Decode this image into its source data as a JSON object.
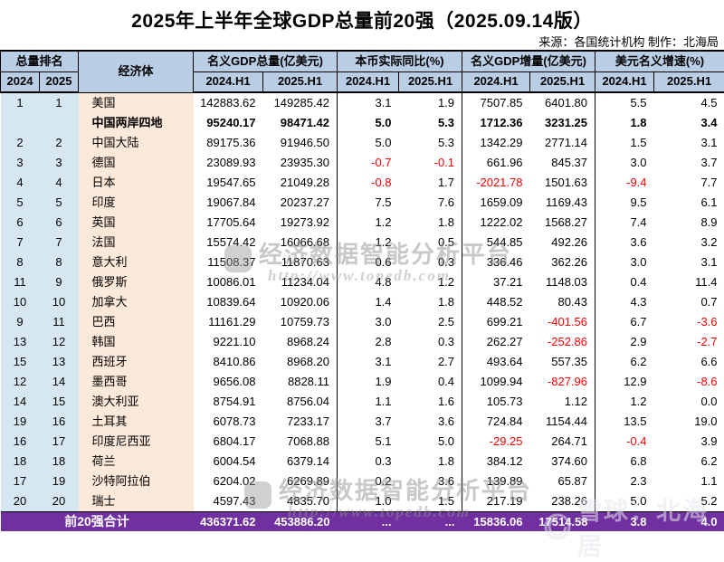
{
  "title": "2025年上半年全球GDP总量前20强（2025.09.14版）",
  "source_line": "来源：各国统计机构 制作：北海局",
  "colors": {
    "header_bg": "#B9CDE4",
    "rank_bg": "#D7E7F2",
    "economy_bg": "#FDE9D9",
    "total_bg": "#7030A0",
    "negative": "#FF0000"
  },
  "chart_data": {
    "type": "table",
    "group_headers": [
      "总量排名",
      "经济体",
      "名义GDP总量(亿美元)",
      "本币实际同比(%)",
      "名义GDP增量(亿美元)",
      "美元名义增速(%)"
    ],
    "sub_headers": [
      "2024",
      "2025",
      "2024.H1",
      "2025.H1",
      "2024.H1",
      "2025.H1",
      "2024.H1",
      "2025.H1",
      "2024.H1",
      "2025.H1"
    ],
    "rows": [
      {
        "rank_2024": "1",
        "rank_2025": "1",
        "economy": "美国",
        "bold": false,
        "values": [
          "142883.62",
          "149285.42",
          "3.1",
          "1.9",
          "7507.85",
          "6401.80",
          "5.5",
          "4.5"
        ]
      },
      {
        "rank_2024": "",
        "rank_2025": "",
        "economy": "中国两岸四地",
        "bold": true,
        "values": [
          "95240.17",
          "98471.42",
          "5.0",
          "5.3",
          "1712.36",
          "3231.25",
          "1.8",
          "3.4"
        ]
      },
      {
        "rank_2024": "2",
        "rank_2025": "2",
        "economy": "中国大陆",
        "bold": false,
        "values": [
          "89175.36",
          "91946.50",
          "5.0",
          "5.3",
          "1342.29",
          "2771.14",
          "1.5",
          "3.1"
        ]
      },
      {
        "rank_2024": "3",
        "rank_2025": "3",
        "economy": "德国",
        "bold": false,
        "values": [
          "23089.93",
          "23935.30",
          "-0.7",
          "-0.1",
          "661.96",
          "845.37",
          "3.0",
          "3.7"
        ]
      },
      {
        "rank_2024": "4",
        "rank_2025": "4",
        "economy": "日本",
        "bold": false,
        "values": [
          "19547.65",
          "21049.28",
          "-0.8",
          "1.7",
          "-2021.78",
          "1501.63",
          "-9.4",
          "7.7"
        ]
      },
      {
        "rank_2024": "5",
        "rank_2025": "5",
        "economy": "印度",
        "bold": false,
        "values": [
          "19067.84",
          "20237.27",
          "7.5",
          "7.6",
          "1659.09",
          "1169.43",
          "9.5",
          "6.1"
        ]
      },
      {
        "rank_2024": "6",
        "rank_2025": "6",
        "economy": "英国",
        "bold": false,
        "values": [
          "17705.64",
          "19273.92",
          "1.2",
          "1.8",
          "1222.02",
          "1568.27",
          "7.4",
          "8.9"
        ]
      },
      {
        "rank_2024": "7",
        "rank_2025": "7",
        "economy": "法国",
        "bold": false,
        "values": [
          "15574.42",
          "16066.68",
          "1.2",
          "0.5",
          "544.85",
          "492.26",
          "3.6",
          "3.2"
        ]
      },
      {
        "rank_2024": "8",
        "rank_2025": "8",
        "economy": "意大利",
        "bold": false,
        "values": [
          "11508.37",
          "11870.63",
          "0.6",
          "0.3",
          "336.46",
          "362.26",
          "3.0",
          "3.1"
        ]
      },
      {
        "rank_2024": "11",
        "rank_2025": "9",
        "economy": "俄罗斯",
        "bold": false,
        "values": [
          "10086.01",
          "11234.04",
          "4.8",
          "1.2",
          "37.21",
          "1148.03",
          "0.4",
          "11.4"
        ]
      },
      {
        "rank_2024": "10",
        "rank_2025": "10",
        "economy": "加拿大",
        "bold": false,
        "values": [
          "10839.64",
          "10920.06",
          "1.4",
          "1.8",
          "448.52",
          "80.43",
          "4.3",
          "0.7"
        ]
      },
      {
        "rank_2024": "9",
        "rank_2025": "11",
        "economy": "巴西",
        "bold": false,
        "values": [
          "11161.29",
          "10759.73",
          "3.0",
          "2.5",
          "699.21",
          "-401.56",
          "6.7",
          "-3.6"
        ]
      },
      {
        "rank_2024": "13",
        "rank_2025": "12",
        "economy": "韩国",
        "bold": false,
        "values": [
          "9221.10",
          "8968.24",
          "2.8",
          "0.3",
          "262.27",
          "-252.86",
          "2.9",
          "-2.7"
        ]
      },
      {
        "rank_2024": "15",
        "rank_2025": "13",
        "economy": "西班牙",
        "bold": false,
        "values": [
          "8410.86",
          "8968.20",
          "3.1",
          "2.7",
          "493.64",
          "557.35",
          "6.2",
          "6.6"
        ]
      },
      {
        "rank_2024": "12",
        "rank_2025": "14",
        "economy": "墨西哥",
        "bold": false,
        "values": [
          "9656.08",
          "8828.11",
          "1.9",
          "0.4",
          "1099.94",
          "-827.96",
          "12.9",
          "-8.6"
        ]
      },
      {
        "rank_2024": "14",
        "rank_2025": "15",
        "economy": "澳大利亚",
        "bold": false,
        "values": [
          "8754.91",
          "8756.04",
          "1.1",
          "1.6",
          "105.73",
          "1.12",
          "1.2",
          "0.0"
        ]
      },
      {
        "rank_2024": "19",
        "rank_2025": "16",
        "economy": "土耳其",
        "bold": false,
        "values": [
          "6078.73",
          "7233.17",
          "3.7",
          "3.6",
          "724.84",
          "1154.44",
          "13.5",
          "19.0"
        ]
      },
      {
        "rank_2024": "16",
        "rank_2025": "17",
        "economy": "印度尼西亚",
        "bold": false,
        "values": [
          "6804.17",
          "7068.88",
          "5.1",
          "5.0",
          "-29.25",
          "264.71",
          "-0.4",
          "3.9"
        ]
      },
      {
        "rank_2024": "18",
        "rank_2025": "18",
        "economy": "荷兰",
        "bold": false,
        "values": [
          "6004.54",
          "6379.14",
          "0.3",
          "1.8",
          "384.12",
          "374.60",
          "6.8",
          "6.2"
        ]
      },
      {
        "rank_2024": "17",
        "rank_2025": "19",
        "economy": "沙特阿拉伯",
        "bold": false,
        "values": [
          "6204.02",
          "6269.89",
          "0.2",
          "3.6",
          "139.89",
          "65.87",
          "2.3",
          "1.1"
        ]
      },
      {
        "rank_2024": "20",
        "rank_2025": "20",
        "economy": "瑞士",
        "bold": false,
        "values": [
          "4597.43",
          "4835.70",
          "1.0",
          "1.5",
          "217.19",
          "238.26",
          "5.0",
          "5.2"
        ]
      }
    ],
    "total_row": {
      "label": "前20强合计",
      "values": [
        "436371.62",
        "453886.20",
        "...",
        "...",
        "15836.06",
        "17514.58",
        "3.8",
        "4.0"
      ]
    }
  },
  "watermarks": {
    "platform_text": "经济数据智能分析平台",
    "platform_url": "http://www.topedb.com",
    "brand_text": "雪球：北海居"
  }
}
